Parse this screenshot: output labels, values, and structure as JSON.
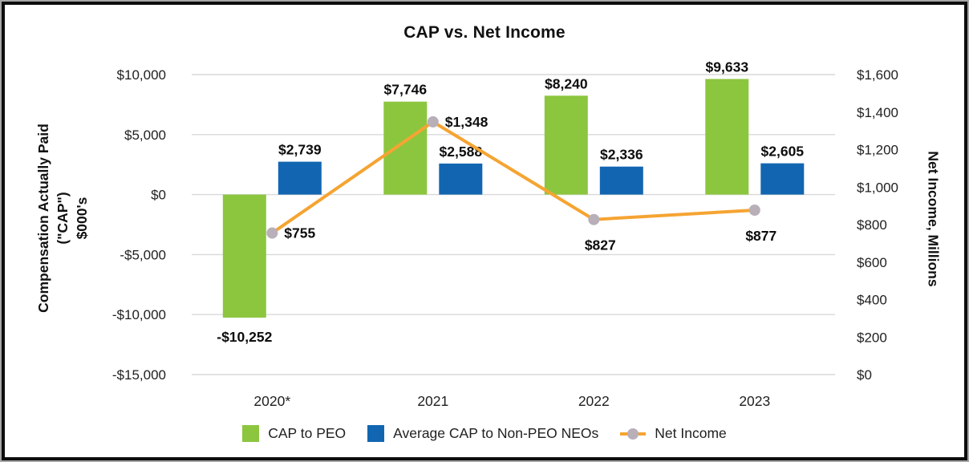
{
  "title": "CAP vs. Net Income",
  "chart_data": {
    "type": "bar+line combo",
    "title": "CAP vs. Net Income",
    "categories": [
      "2020*",
      "2021",
      "2022",
      "2023"
    ],
    "bar_series": [
      {
        "name": "CAP to PEO",
        "axis": "left",
        "color": "#8CC63F",
        "values": [
          -10252,
          7746,
          8240,
          9633
        ],
        "labels": [
          "-$10,252",
          "$7,746",
          "$8,240",
          "$9,633"
        ]
      },
      {
        "name": "Average CAP to Non-PEO NEOs",
        "axis": "left",
        "color": "#1266B1",
        "values": [
          2739,
          2588,
          2336,
          2605
        ],
        "labels": [
          "$2,739",
          "$2,588",
          "$2,336",
          "$2,605"
        ]
      }
    ],
    "line_series": {
      "name": "Net Income",
      "axis": "right",
      "line_color": "#F5A432",
      "marker_color": "#B8AFB9",
      "values": [
        755,
        1348,
        827,
        877
      ],
      "labels": [
        "$755",
        "$1,348",
        "$827",
        "$877"
      ],
      "label_positions": [
        "right",
        "right",
        "below",
        "below"
      ]
    },
    "left_axis": {
      "title_lines": [
        "Compensation Actually Paid",
        "(\"CAP\")",
        "$000's"
      ],
      "min": -15000,
      "max": 10000,
      "ticks": [
        {
          "v": 10000,
          "label": "$10,000"
        },
        {
          "v": 5000,
          "label": "$5,000"
        },
        {
          "v": 0,
          "label": "$0"
        },
        {
          "v": -5000,
          "label": "-$5,000"
        },
        {
          "v": -10000,
          "label": "-$10,000"
        },
        {
          "v": -15000,
          "label": "-$15,000"
        }
      ]
    },
    "right_axis": {
      "title": "Net Income, Millions",
      "min": 0,
      "max": 1600,
      "ticks": [
        {
          "v": 1600,
          "label": "$1,600"
        },
        {
          "v": 1400,
          "label": "$1,400"
        },
        {
          "v": 1200,
          "label": "$1,200"
        },
        {
          "v": 1000,
          "label": "$1,000"
        },
        {
          "v": 800,
          "label": "$800"
        },
        {
          "v": 600,
          "label": "$600"
        },
        {
          "v": 400,
          "label": "$400"
        },
        {
          "v": 200,
          "label": "$200"
        },
        {
          "v": 0,
          "label": "$0"
        }
      ]
    },
    "grid": "horizontal-left-ticks-only",
    "gridline_color": "#D9D9D9",
    "legend_position": "bottom"
  }
}
